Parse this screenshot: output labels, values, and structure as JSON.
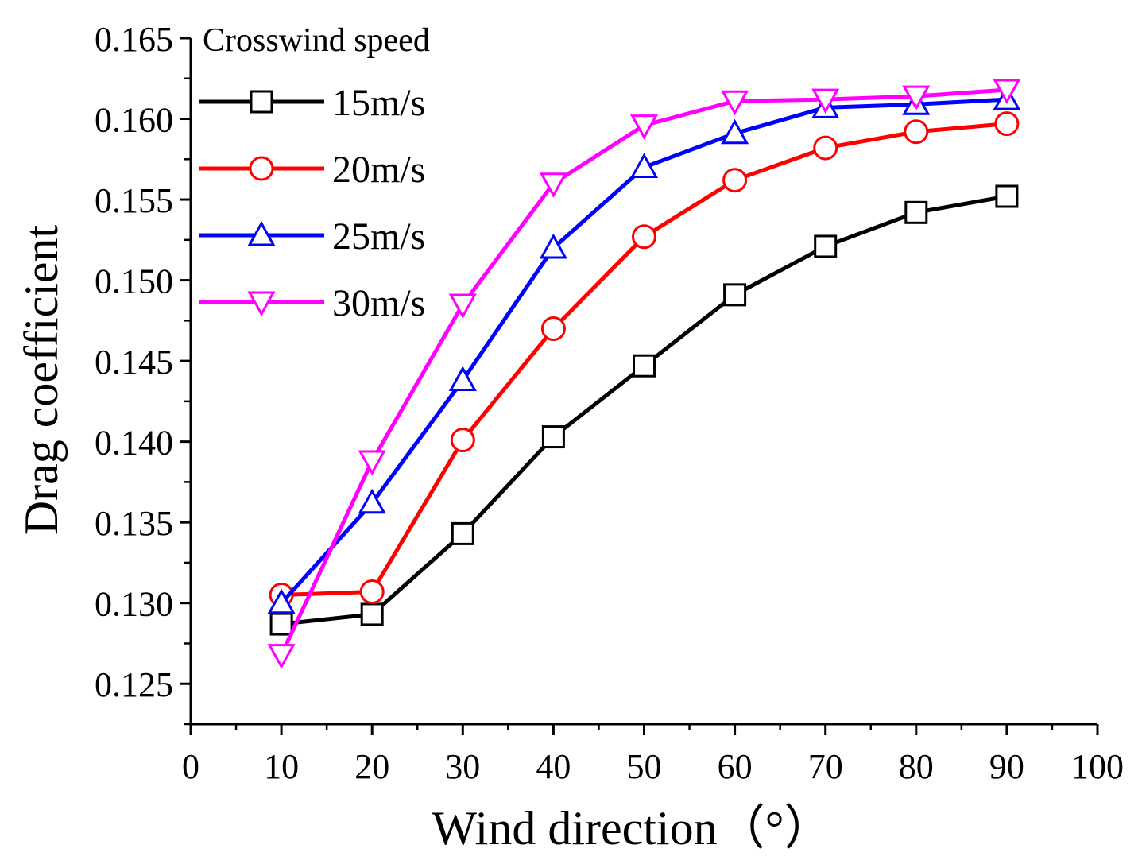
{
  "chart_data": {
    "type": "line",
    "title": "",
    "xlabel": "Wind direction（°）",
    "ylabel": "Drag coefficient",
    "xlim": [
      0,
      100
    ],
    "ylim": [
      0.1225,
      0.165
    ],
    "xticks": [
      "0",
      "10",
      "20",
      "30",
      "40",
      "50",
      "60",
      "70",
      "80",
      "90",
      "100"
    ],
    "yticks": [
      "0.125",
      "0.130",
      "0.135",
      "0.140",
      "0.145",
      "0.150",
      "0.155",
      "0.160",
      "0.165"
    ],
    "grid": false,
    "legend": {
      "title": "Crosswind speed",
      "position": "top-left"
    },
    "x": [
      10,
      20,
      30,
      40,
      50,
      60,
      70,
      80,
      90
    ],
    "series": [
      {
        "name": "15m/s",
        "color": "#000000",
        "marker": "square",
        "values": [
          0.1287,
          0.1293,
          0.1343,
          0.1403,
          0.1447,
          0.1491,
          0.1521,
          0.1542,
          0.1552
        ]
      },
      {
        "name": "20m/s",
        "color": "#ff0000",
        "marker": "circle",
        "values": [
          0.1305,
          0.1307,
          0.1401,
          0.147,
          0.1527,
          0.1562,
          0.1582,
          0.1592,
          0.1597
        ]
      },
      {
        "name": "25m/s",
        "color": "#0000ff",
        "marker": "triangle-up",
        "values": [
          0.13,
          0.1362,
          0.1438,
          0.152,
          0.157,
          0.1591,
          0.1607,
          0.1609,
          0.1612
        ]
      },
      {
        "name": "30m/s",
        "color": "#ff00ff",
        "marker": "triangle-down",
        "values": [
          0.1268,
          0.1388,
          0.1485,
          0.156,
          0.1596,
          0.1611,
          0.1612,
          0.1614,
          0.1618
        ]
      }
    ]
  }
}
